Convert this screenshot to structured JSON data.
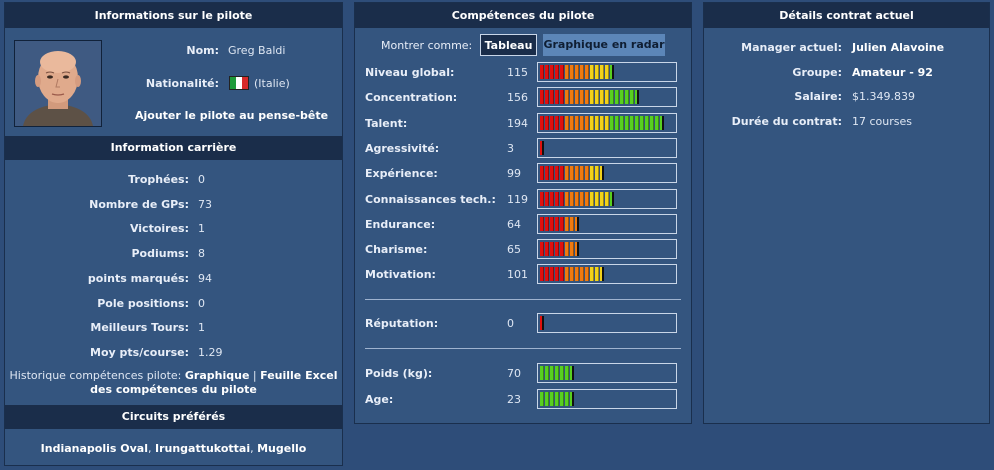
{
  "pilot_info": {
    "header": "Informations sur le pilote",
    "name_label": "Nom:",
    "name_value": "Greg Baldi",
    "nationality_label": "Nationalité:",
    "nationality_value": "(Italie)",
    "add_notes_link": "Ajouter le pilote au pense-bête"
  },
  "career": {
    "header": "Information carrière",
    "rows": [
      {
        "label": "Trophées:",
        "value": "0"
      },
      {
        "label": "Nombre de GPs:",
        "value": "73"
      },
      {
        "label": "Victoires:",
        "value": "1"
      },
      {
        "label": "Podiums:",
        "value": "8"
      },
      {
        "label": "points marqués:",
        "value": "94"
      },
      {
        "label": "Pole positions:",
        "value": "0"
      },
      {
        "label": "Meilleurs Tours:",
        "value": "1"
      },
      {
        "label": "Moy pts/course:",
        "value": "1.29"
      }
    ],
    "history_label": "Historique compétences pilote:",
    "history_graph_link": "Graphique",
    "history_separator": "|",
    "history_excel_link_1": "Feuille Excel",
    "history_excel_link_2": "des compétences du pilote"
  },
  "circuits": {
    "header": "Circuits préférés",
    "items": [
      "Indianapolis Oval",
      "Irungattukottai",
      "Mugello"
    ],
    "separator": ","
  },
  "skills": {
    "header": "Compétences du pilote",
    "show_as_label": "Montrer comme:",
    "table_button": "Tableau",
    "radar_button": "Graphique en radar",
    "rows": [
      {
        "label": "Niveau global:",
        "value": "115",
        "level": 115,
        "type": "skill"
      },
      {
        "label": "Concentration:",
        "value": "156",
        "level": 156,
        "type": "skill"
      },
      {
        "label": "Talent:",
        "value": "194",
        "level": 194,
        "type": "skill"
      },
      {
        "label": "Agressivité:",
        "value": "3",
        "level": 3,
        "type": "skill"
      },
      {
        "label": "Expérience:",
        "value": "99",
        "level": 99,
        "type": "skill"
      },
      {
        "label": "Connaissances tech.:",
        "value": "119",
        "level": 119,
        "type": "skill"
      },
      {
        "label": "Endurance:",
        "value": "64",
        "level": 64,
        "type": "skill"
      },
      {
        "label": "Charisme:",
        "value": "65",
        "level": 65,
        "type": "skill"
      },
      {
        "label": "Motivation:",
        "value": "101",
        "level": 101,
        "type": "skill"
      }
    ],
    "reputation": {
      "label": "Réputation:",
      "value": "0",
      "level": 0,
      "type": "skill"
    },
    "physical": [
      {
        "label": "Poids (kg):",
        "value": "70",
        "level": 70,
        "type": "green"
      },
      {
        "label": "Age:",
        "value": "23",
        "level": 23,
        "type": "green"
      }
    ],
    "colors": {
      "red": "#e0100e",
      "orange": "#f07a10",
      "yellow": "#f2d21a",
      "green": "#58d020"
    }
  },
  "contract": {
    "header": "Détails contrat actuel",
    "rows": [
      {
        "label": "Manager actuel:",
        "value": "Julien Alavoine"
      },
      {
        "label": "Groupe:",
        "value": "Amateur - 92"
      },
      {
        "label": "Salaire:",
        "value": "$1.349.839"
      },
      {
        "label": "Durée du contrat:",
        "value": "17 courses"
      }
    ]
  }
}
